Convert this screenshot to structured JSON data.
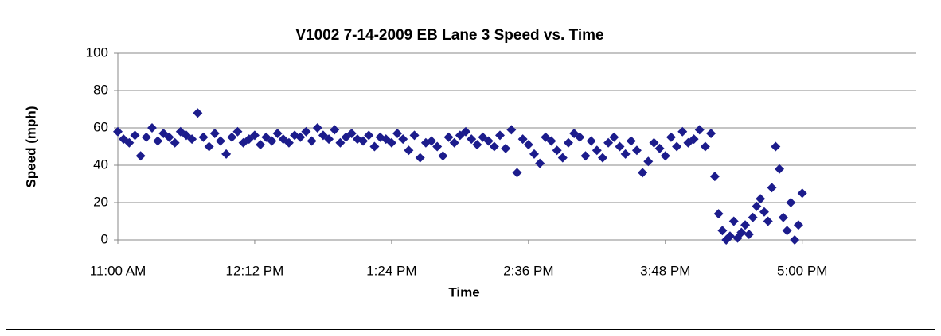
{
  "chart_data": {
    "type": "scatter",
    "title": "V1002 7-14-2009 EB Lane 3 Speed vs. Time",
    "x_label": "Time",
    "y_label": "Speed (mph)",
    "color": "#1c1c8c",
    "xlim": [
      660,
      1080
    ],
    "xticks": [
      {
        "value": 660,
        "label": "11:00 AM"
      },
      {
        "value": 732,
        "label": "12:12 PM"
      },
      {
        "value": 804,
        "label": "1:24 PM"
      },
      {
        "value": 876,
        "label": "2:36 PM"
      },
      {
        "value": 948,
        "label": "3:48 PM"
      },
      {
        "value": 1020,
        "label": "5:00 PM"
      }
    ],
    "ylim": [
      0,
      100
    ],
    "yticks": [
      0,
      20,
      40,
      60,
      80,
      100
    ],
    "grid": true,
    "x": [
      660,
      663,
      666,
      669,
      672,
      675,
      678,
      681,
      684,
      687,
      690,
      693,
      696,
      699,
      702,
      705,
      708,
      711,
      714,
      717,
      720,
      723,
      726,
      729,
      732,
      735,
      738,
      741,
      744,
      747,
      750,
      753,
      756,
      759,
      762,
      765,
      768,
      771,
      774,
      777,
      780,
      783,
      786,
      789,
      792,
      795,
      798,
      801,
      804,
      807,
      810,
      813,
      816,
      819,
      822,
      825,
      828,
      831,
      834,
      837,
      840,
      843,
      846,
      849,
      852,
      855,
      858,
      861,
      864,
      867,
      870,
      873,
      876,
      879,
      882,
      885,
      888,
      891,
      894,
      897,
      900,
      903,
      906,
      909,
      912,
      915,
      918,
      921,
      924,
      927,
      930,
      933,
      936,
      939,
      942,
      945,
      948,
      951,
      954,
      957,
      960,
      963,
      966,
      969,
      972,
      974,
      976,
      978,
      980,
      982,
      984,
      986,
      988,
      990,
      992,
      994,
      996,
      998,
      1000,
      1002,
      1004,
      1006,
      1008,
      1010,
      1012,
      1014,
      1016,
      1018,
      1020
    ],
    "values": [
      58,
      54,
      52,
      56,
      45,
      55,
      60,
      53,
      57,
      55,
      52,
      58,
      56,
      54,
      68,
      55,
      50,
      57,
      53,
      46,
      55,
      58,
      52,
      54,
      56,
      51,
      55,
      53,
      57,
      54,
      52,
      56,
      55,
      58,
      53,
      60,
      56,
      54,
      59,
      52,
      55,
      57,
      54,
      53,
      56,
      50,
      55,
      54,
      52,
      57,
      54,
      48,
      56,
      44,
      52,
      53,
      50,
      45,
      55,
      52,
      56,
      58,
      54,
      51,
      55,
      53,
      50,
      56,
      49,
      59,
      36,
      54,
      51,
      46,
      41,
      55,
      53,
      48,
      44,
      52,
      57,
      55,
      45,
      53,
      48,
      44,
      52,
      55,
      50,
      46,
      53,
      48,
      36,
      42,
      52,
      49,
      45,
      55,
      50,
      58,
      52,
      54,
      59,
      50,
      57,
      34,
      14,
      5,
      0,
      2,
      10,
      1,
      4,
      8,
      3,
      12,
      18,
      22,
      15,
      10,
      28,
      50,
      38,
      12,
      5,
      20,
      0,
      8,
      25
    ]
  }
}
